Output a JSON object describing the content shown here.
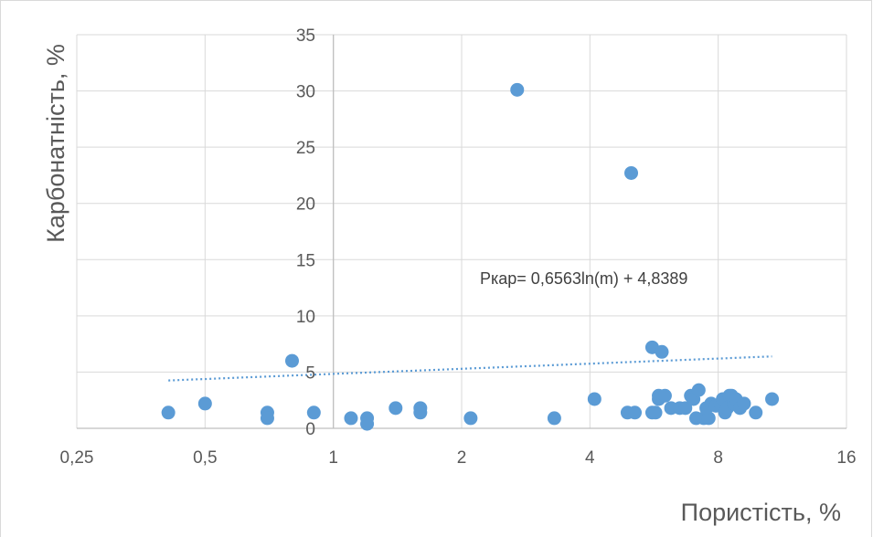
{
  "chart_data": {
    "type": "scatter",
    "title": "",
    "xlabel": "Пористість, %",
    "ylabel": "Карбонатність, %",
    "x_scale": "log2",
    "xlim": [
      0.25,
      16
    ],
    "ylim": [
      0,
      35
    ],
    "x_ticks": [
      0.25,
      0.5,
      1,
      2,
      4,
      8,
      16
    ],
    "x_tick_labels": [
      "0,25",
      "0,5",
      "1",
      "2",
      "4",
      "8",
      "16"
    ],
    "y_ticks": [
      0,
      5,
      10,
      15,
      20,
      25,
      30,
      35
    ],
    "y_tick_labels": [
      "0",
      "5",
      "10",
      "15",
      "20",
      "25",
      "30",
      "35"
    ],
    "grid": true,
    "colors": {
      "points": "#5b9bd5",
      "trendline": "#5b9bd5",
      "grid": "#d9d9d9",
      "text": "#595959"
    },
    "trendline": {
      "type": "logarithmic",
      "style": "dotted",
      "equation": "Pкар= 0,6563ln(m) + 4,8389",
      "a": 0.6563,
      "b": 4.8389
    },
    "points": [
      {
        "x": 0.41,
        "y": 1.4
      },
      {
        "x": 0.5,
        "y": 2.2
      },
      {
        "x": 0.7,
        "y": 1.4
      },
      {
        "x": 0.7,
        "y": 0.9
      },
      {
        "x": 0.8,
        "y": 6.0
      },
      {
        "x": 0.9,
        "y": 1.4
      },
      {
        "x": 1.1,
        "y": 0.9
      },
      {
        "x": 1.2,
        "y": 0.9
      },
      {
        "x": 1.2,
        "y": 0.4
      },
      {
        "x": 1.4,
        "y": 1.8
      },
      {
        "x": 1.6,
        "y": 1.8
      },
      {
        "x": 1.6,
        "y": 1.4
      },
      {
        "x": 2.1,
        "y": 0.9
      },
      {
        "x": 2.7,
        "y": 30.1
      },
      {
        "x": 3.3,
        "y": 0.9
      },
      {
        "x": 4.1,
        "y": 2.6
      },
      {
        "x": 5.0,
        "y": 22.7
      },
      {
        "x": 4.9,
        "y": 1.4
      },
      {
        "x": 5.1,
        "y": 1.4
      },
      {
        "x": 5.6,
        "y": 7.2
      },
      {
        "x": 5.9,
        "y": 6.8
      },
      {
        "x": 5.8,
        "y": 2.9
      },
      {
        "x": 5.8,
        "y": 2.6
      },
      {
        "x": 6.0,
        "y": 2.9
      },
      {
        "x": 5.6,
        "y": 1.4
      },
      {
        "x": 5.7,
        "y": 1.4
      },
      {
        "x": 6.2,
        "y": 1.8
      },
      {
        "x": 6.5,
        "y": 1.8
      },
      {
        "x": 6.7,
        "y": 1.8
      },
      {
        "x": 6.9,
        "y": 2.9
      },
      {
        "x": 7.0,
        "y": 2.6
      },
      {
        "x": 7.2,
        "y": 3.4
      },
      {
        "x": 7.1,
        "y": 0.9
      },
      {
        "x": 7.4,
        "y": 0.9
      },
      {
        "x": 7.6,
        "y": 0.9
      },
      {
        "x": 7.5,
        "y": 1.8
      },
      {
        "x": 7.7,
        "y": 2.2
      },
      {
        "x": 7.9,
        "y": 2.0
      },
      {
        "x": 8.1,
        "y": 2.2
      },
      {
        "x": 8.2,
        "y": 2.6
      },
      {
        "x": 8.3,
        "y": 1.4
      },
      {
        "x": 8.4,
        "y": 1.8
      },
      {
        "x": 8.5,
        "y": 2.9
      },
      {
        "x": 8.6,
        "y": 2.9
      },
      {
        "x": 8.7,
        "y": 2.2
      },
      {
        "x": 8.8,
        "y": 2.6
      },
      {
        "x": 9.0,
        "y": 1.8
      },
      {
        "x": 9.2,
        "y": 2.2
      },
      {
        "x": 9.8,
        "y": 1.4
      },
      {
        "x": 10.7,
        "y": 2.6
      }
    ]
  }
}
